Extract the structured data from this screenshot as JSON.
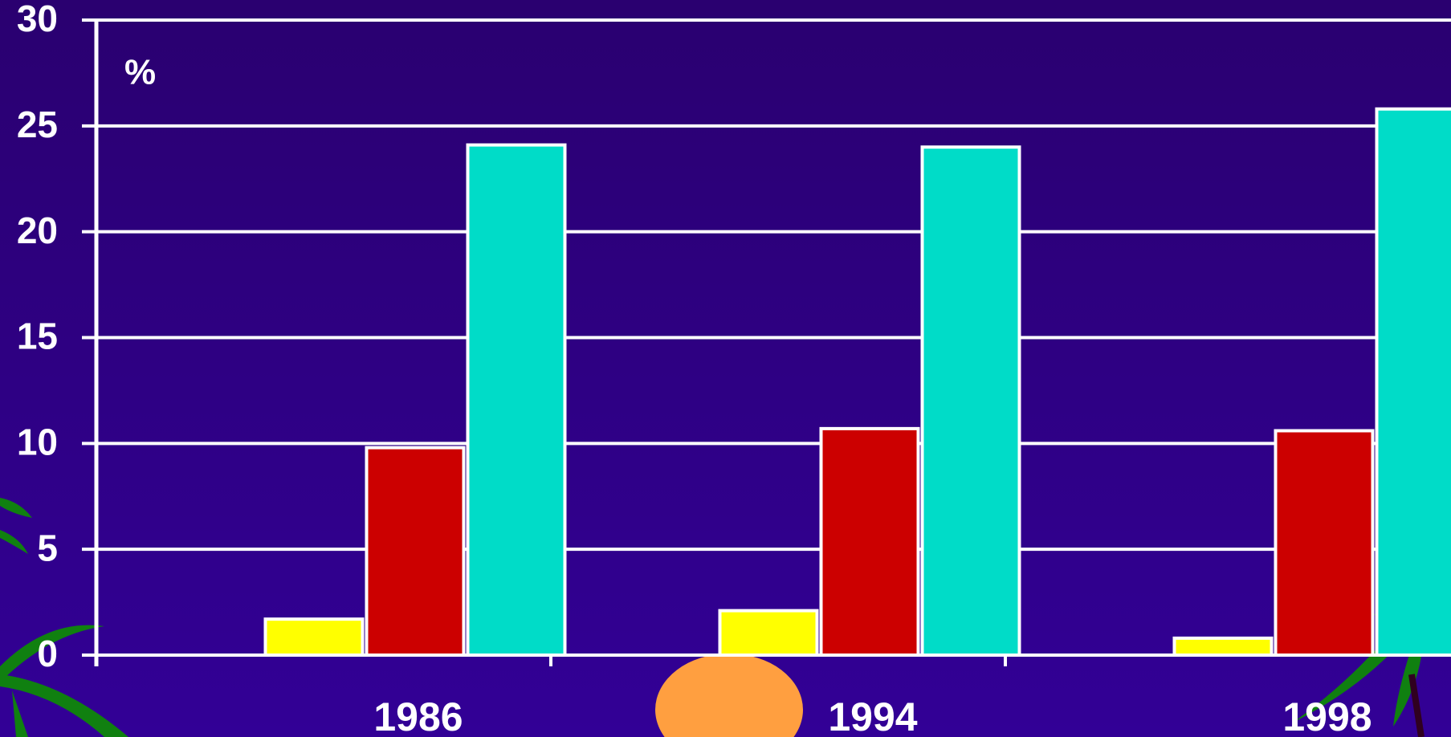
{
  "chart_data": {
    "type": "bar",
    "annotation": "%",
    "categories": [
      "1986",
      "1994",
      "1998"
    ],
    "series": [
      {
        "color": "#ffff00",
        "values": [
          1.7,
          2.1,
          0.8
        ]
      },
      {
        "color": "#cc0000",
        "values": [
          9.8,
          10.7,
          10.6
        ]
      },
      {
        "color": "#00dcc8",
        "values": [
          24.1,
          24.0,
          25.8
        ]
      }
    ],
    "ylim": [
      0,
      30
    ],
    "yticks": [
      0,
      5,
      10,
      15,
      20,
      25,
      30
    ],
    "grid": true
  }
}
